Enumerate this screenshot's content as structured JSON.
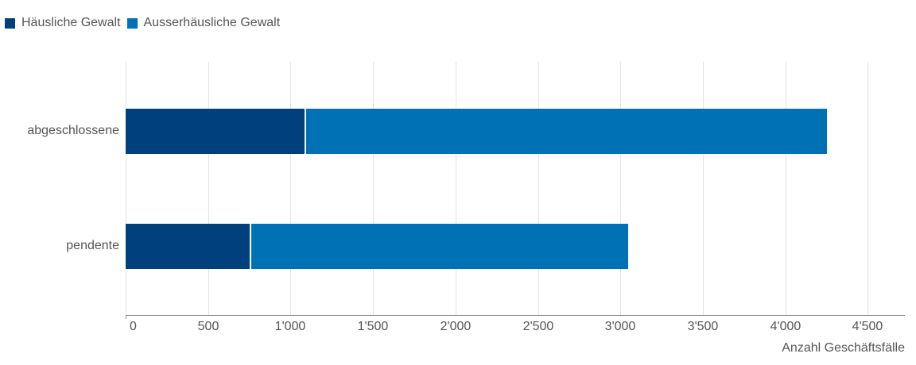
{
  "legend": [
    {
      "label": "Häusliche Gewalt",
      "color": "#00417d"
    },
    {
      "label": "Ausserhäusliche Gewalt",
      "color": "#0071b5"
    }
  ],
  "chart_data": {
    "type": "bar",
    "orientation": "horizontal",
    "stacked": true,
    "title": "",
    "categories": [
      "abgeschlossene",
      "pendente"
    ],
    "series": [
      {
        "name": "Häusliche Gewalt",
        "color": "#00417d",
        "values": [
          1094,
          762
        ]
      },
      {
        "name": "Ausserhäusliche Gewalt",
        "color": "#0071b5",
        "values": [
          3159,
          2284
        ]
      }
    ],
    "totals": [
      4253,
      3046
    ],
    "xlabel": "Anzahl Geschäftsfälle",
    "ylabel": "",
    "xlim": [
      0,
      4700
    ],
    "xticks": [
      0,
      500,
      1000,
      1500,
      2000,
      2500,
      3000,
      3500,
      4000,
      4500
    ],
    "xtick_labels": [
      "0",
      "500",
      "1'000",
      "1'500",
      "2'000",
      "2'500",
      "3'000",
      "3'500",
      "4'000",
      "4'500"
    ],
    "grid": {
      "x": true,
      "y": false
    },
    "legend_position": "top-left"
  }
}
